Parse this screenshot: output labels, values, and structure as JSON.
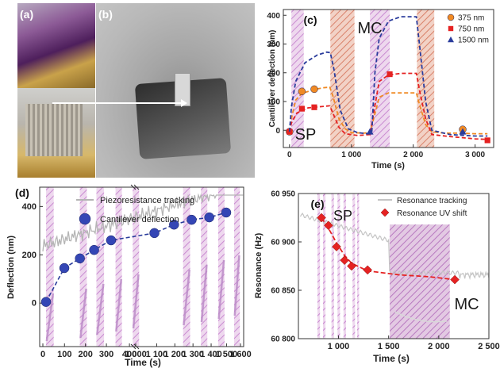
{
  "panels": {
    "a": "(a)",
    "b": "(b)",
    "c": "(c)",
    "d": "(d)",
    "e": "(e)"
  },
  "chart_data": [
    {
      "panel": "(c)",
      "type": "line",
      "xlabel": "Time (s)",
      "ylabel": "Cantilever deflection (nm)",
      "xlim": [
        -100,
        3300
      ],
      "ylim": [
        -60,
        420
      ],
      "xticks": [
        0,
        1000,
        2000,
        3000
      ],
      "xtick_labels": [
        "0",
        "1 000",
        "2 000",
        "3 000"
      ],
      "yticks": [
        0,
        100,
        200,
        300,
        400
      ],
      "annotations": [
        "MC",
        "SP"
      ],
      "bands": [
        {
          "kind": "SP",
          "from": 30,
          "to": 230
        },
        {
          "kind": "MC",
          "from": 660,
          "to": 1050
        },
        {
          "kind": "SP",
          "from": 1300,
          "to": 1620
        },
        {
          "kind": "MC",
          "from": 2060,
          "to": 2340
        }
      ],
      "series": [
        {
          "name": "375 nm",
          "color": "#f08a24",
          "marker": "circle",
          "points": [
            [
              0,
              -5
            ],
            [
              200,
              135
            ],
            [
              400,
              143
            ],
            [
              2800,
              3
            ]
          ],
          "curve": [
            [
              0,
              -5
            ],
            [
              30,
              40
            ],
            [
              100,
              105
            ],
            [
              200,
              128
            ],
            [
              400,
              142
            ],
            [
              550,
              148
            ],
            [
              650,
              150
            ],
            [
              700,
              120
            ],
            [
              800,
              40
            ],
            [
              900,
              5
            ],
            [
              1000,
              -8
            ],
            [
              1200,
              -10
            ],
            [
              1300,
              -8
            ],
            [
              1360,
              40
            ],
            [
              1450,
              115
            ],
            [
              1600,
              130
            ],
            [
              1800,
              130
            ],
            [
              2050,
              130
            ],
            [
              2100,
              90
            ],
            [
              2200,
              20
            ],
            [
              2300,
              -5
            ],
            [
              2500,
              -10
            ],
            [
              2750,
              -10
            ],
            [
              3000,
              -12
            ],
            [
              3200,
              -12
            ]
          ]
        },
        {
          "name": "750 nm",
          "color": "#e52222",
          "marker": "square",
          "points": [
            [
              0,
              -5
            ],
            [
              200,
              75
            ],
            [
              400,
              80
            ],
            [
              1620,
              195
            ],
            [
              3200,
              -35
            ]
          ],
          "curve": [
            [
              0,
              -5
            ],
            [
              30,
              25
            ],
            [
              120,
              60
            ],
            [
              300,
              78
            ],
            [
              500,
              82
            ],
            [
              650,
              85
            ],
            [
              700,
              60
            ],
            [
              800,
              10
            ],
            [
              900,
              -12
            ],
            [
              1100,
              -18
            ],
            [
              1300,
              -15
            ],
            [
              1360,
              60
            ],
            [
              1450,
              170
            ],
            [
              1600,
              192
            ],
            [
              1800,
              198
            ],
            [
              2050,
              198
            ],
            [
              2100,
              140
            ],
            [
              2200,
              40
            ],
            [
              2300,
              -15
            ],
            [
              2600,
              -22
            ],
            [
              3000,
              -30
            ],
            [
              3200,
              -32
            ]
          ]
        },
        {
          "name": "1500 nm",
          "color": "#2a3c9c",
          "marker": "triangle",
          "points": [
            [
              1300,
              -5
            ],
            [
              2800,
              -5
            ]
          ],
          "curve": [
            [
              0,
              -5
            ],
            [
              30,
              80
            ],
            [
              100,
              170
            ],
            [
              250,
              235
            ],
            [
              450,
              262
            ],
            [
              600,
              272
            ],
            [
              660,
              270
            ],
            [
              720,
              210
            ],
            [
              820,
              70
            ],
            [
              950,
              5
            ],
            [
              1100,
              -8
            ],
            [
              1250,
              -12
            ],
            [
              1330,
              -5
            ],
            [
              1380,
              200
            ],
            [
              1450,
              320
            ],
            [
              1600,
              380
            ],
            [
              1800,
              395
            ],
            [
              2050,
              395
            ],
            [
              2100,
              300
            ],
            [
              2200,
              100
            ],
            [
              2300,
              0
            ],
            [
              2600,
              -15
            ],
            [
              3000,
              -20
            ],
            [
              3200,
              -20
            ]
          ]
        }
      ]
    },
    {
      "panel": "(d)",
      "type": "line",
      "xlabel": "Time (s)",
      "ylabel": "Deflection (nm)",
      "xlim": [
        0,
        1660
      ],
      "ylim": [
        -180,
        480
      ],
      "xticks": [
        0,
        100,
        200,
        300,
        400,
        1000,
        1100,
        1200,
        1300,
        1400,
        1500,
        1600
      ],
      "xtick_labels": [
        "0",
        "100",
        "200",
        "300",
        "400",
        "1 000",
        "1 100",
        "1 200",
        "1 300",
        "1 400",
        "1 500",
        "1 600"
      ],
      "yticks": [
        0,
        200,
        400
      ],
      "series": [
        {
          "name": "Piezoresistance tracking",
          "color": "#b0b0b0",
          "marker": "none"
        },
        {
          "name": "Cantilever deflection",
          "color": "#2a3c9c",
          "marker": "circle",
          "points": [
            [
              30,
              5
            ],
            [
              130,
              145
            ],
            [
              230,
              185
            ],
            [
              330,
              220
            ],
            [
              430,
              260
            ],
            [
              700,
              290
            ],
            [
              730,
              325
            ],
            [
              830,
              345
            ],
            [
              930,
              355
            ],
            [
              1030,
              375
            ]
          ]
        }
      ]
    },
    {
      "panel": "(e)",
      "type": "line",
      "xlabel": "Time (s)",
      "ylabel": "Resonance (Hz)",
      "xlim": [
        600,
        2500
      ],
      "ylim": [
        60800,
        60950
      ],
      "xticks": [
        1000,
        1500,
        2000,
        2500
      ],
      "xtick_labels": [
        "1 000",
        "1 500",
        "2 000",
        "2 500"
      ],
      "yticks": [
        60800,
        60850,
        60900,
        60950
      ],
      "ytick_labels": [
        "60 800",
        "60 850",
        "60 900",
        "60 950"
      ],
      "annotations": [
        "SP",
        "MC"
      ],
      "series": [
        {
          "name": "Resonance tracking",
          "color": "#c8c8c8",
          "marker": "none"
        },
        {
          "name": "Resonance UV shift",
          "color": "#e52222",
          "marker": "diamond",
          "points": [
            [
              830,
              60925
            ],
            [
              900,
              60917
            ],
            [
              980,
              60895
            ],
            [
              1060,
              60881
            ],
            [
              1130,
              60875
            ],
            [
              1290,
              60871
            ],
            [
              2160,
              60861
            ]
          ]
        }
      ]
    }
  ],
  "legend_c": [
    {
      "label": "375 nm",
      "color": "#f08a24",
      "marker": "circle"
    },
    {
      "label": "750 nm",
      "color": "#e52222",
      "marker": "square"
    },
    {
      "label": "1500 nm",
      "color": "#2a3c9c",
      "marker": "triangle"
    }
  ],
  "legend_d": [
    {
      "label": "Piezoresistance tracking"
    },
    {
      "label": "Cantilever deflection"
    }
  ],
  "legend_e": [
    {
      "label": "Resonance tracking"
    },
    {
      "label": "Resonance UV shift"
    }
  ]
}
